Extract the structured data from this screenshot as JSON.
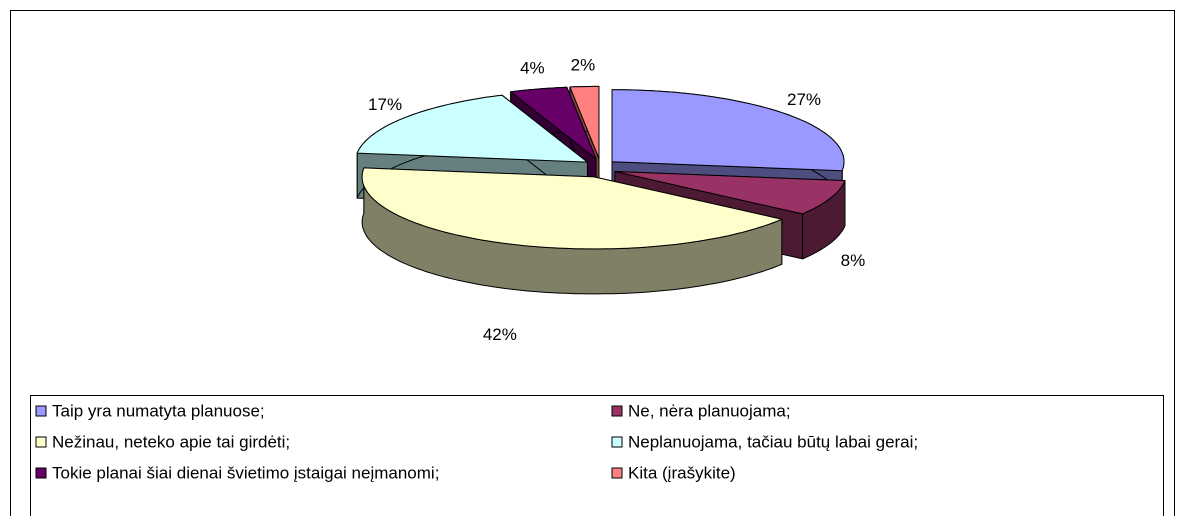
{
  "chart_data": {
    "type": "pie",
    "categories": [
      "Taip yra numatyta planuose;",
      "Ne, nėra planuojama;",
      "Nežinau, neteko apie tai girdėti;",
      "Neplanuojama, tačiau būtų labai gerai;",
      "Tokie planai šiai dienai švietimo įstaigai neįmanomi;",
      "Kita (įrašykite)"
    ],
    "values": [
      27,
      8,
      42,
      17,
      4,
      2
    ],
    "value_labels": [
      "27%",
      "8%",
      "42%",
      "17%",
      "4%",
      "2%"
    ],
    "colors": [
      "#9999ff",
      "#993366",
      "#ffffcc",
      "#ccffff",
      "#660066",
      "#ff8080"
    ],
    "legend": "bottom"
  }
}
